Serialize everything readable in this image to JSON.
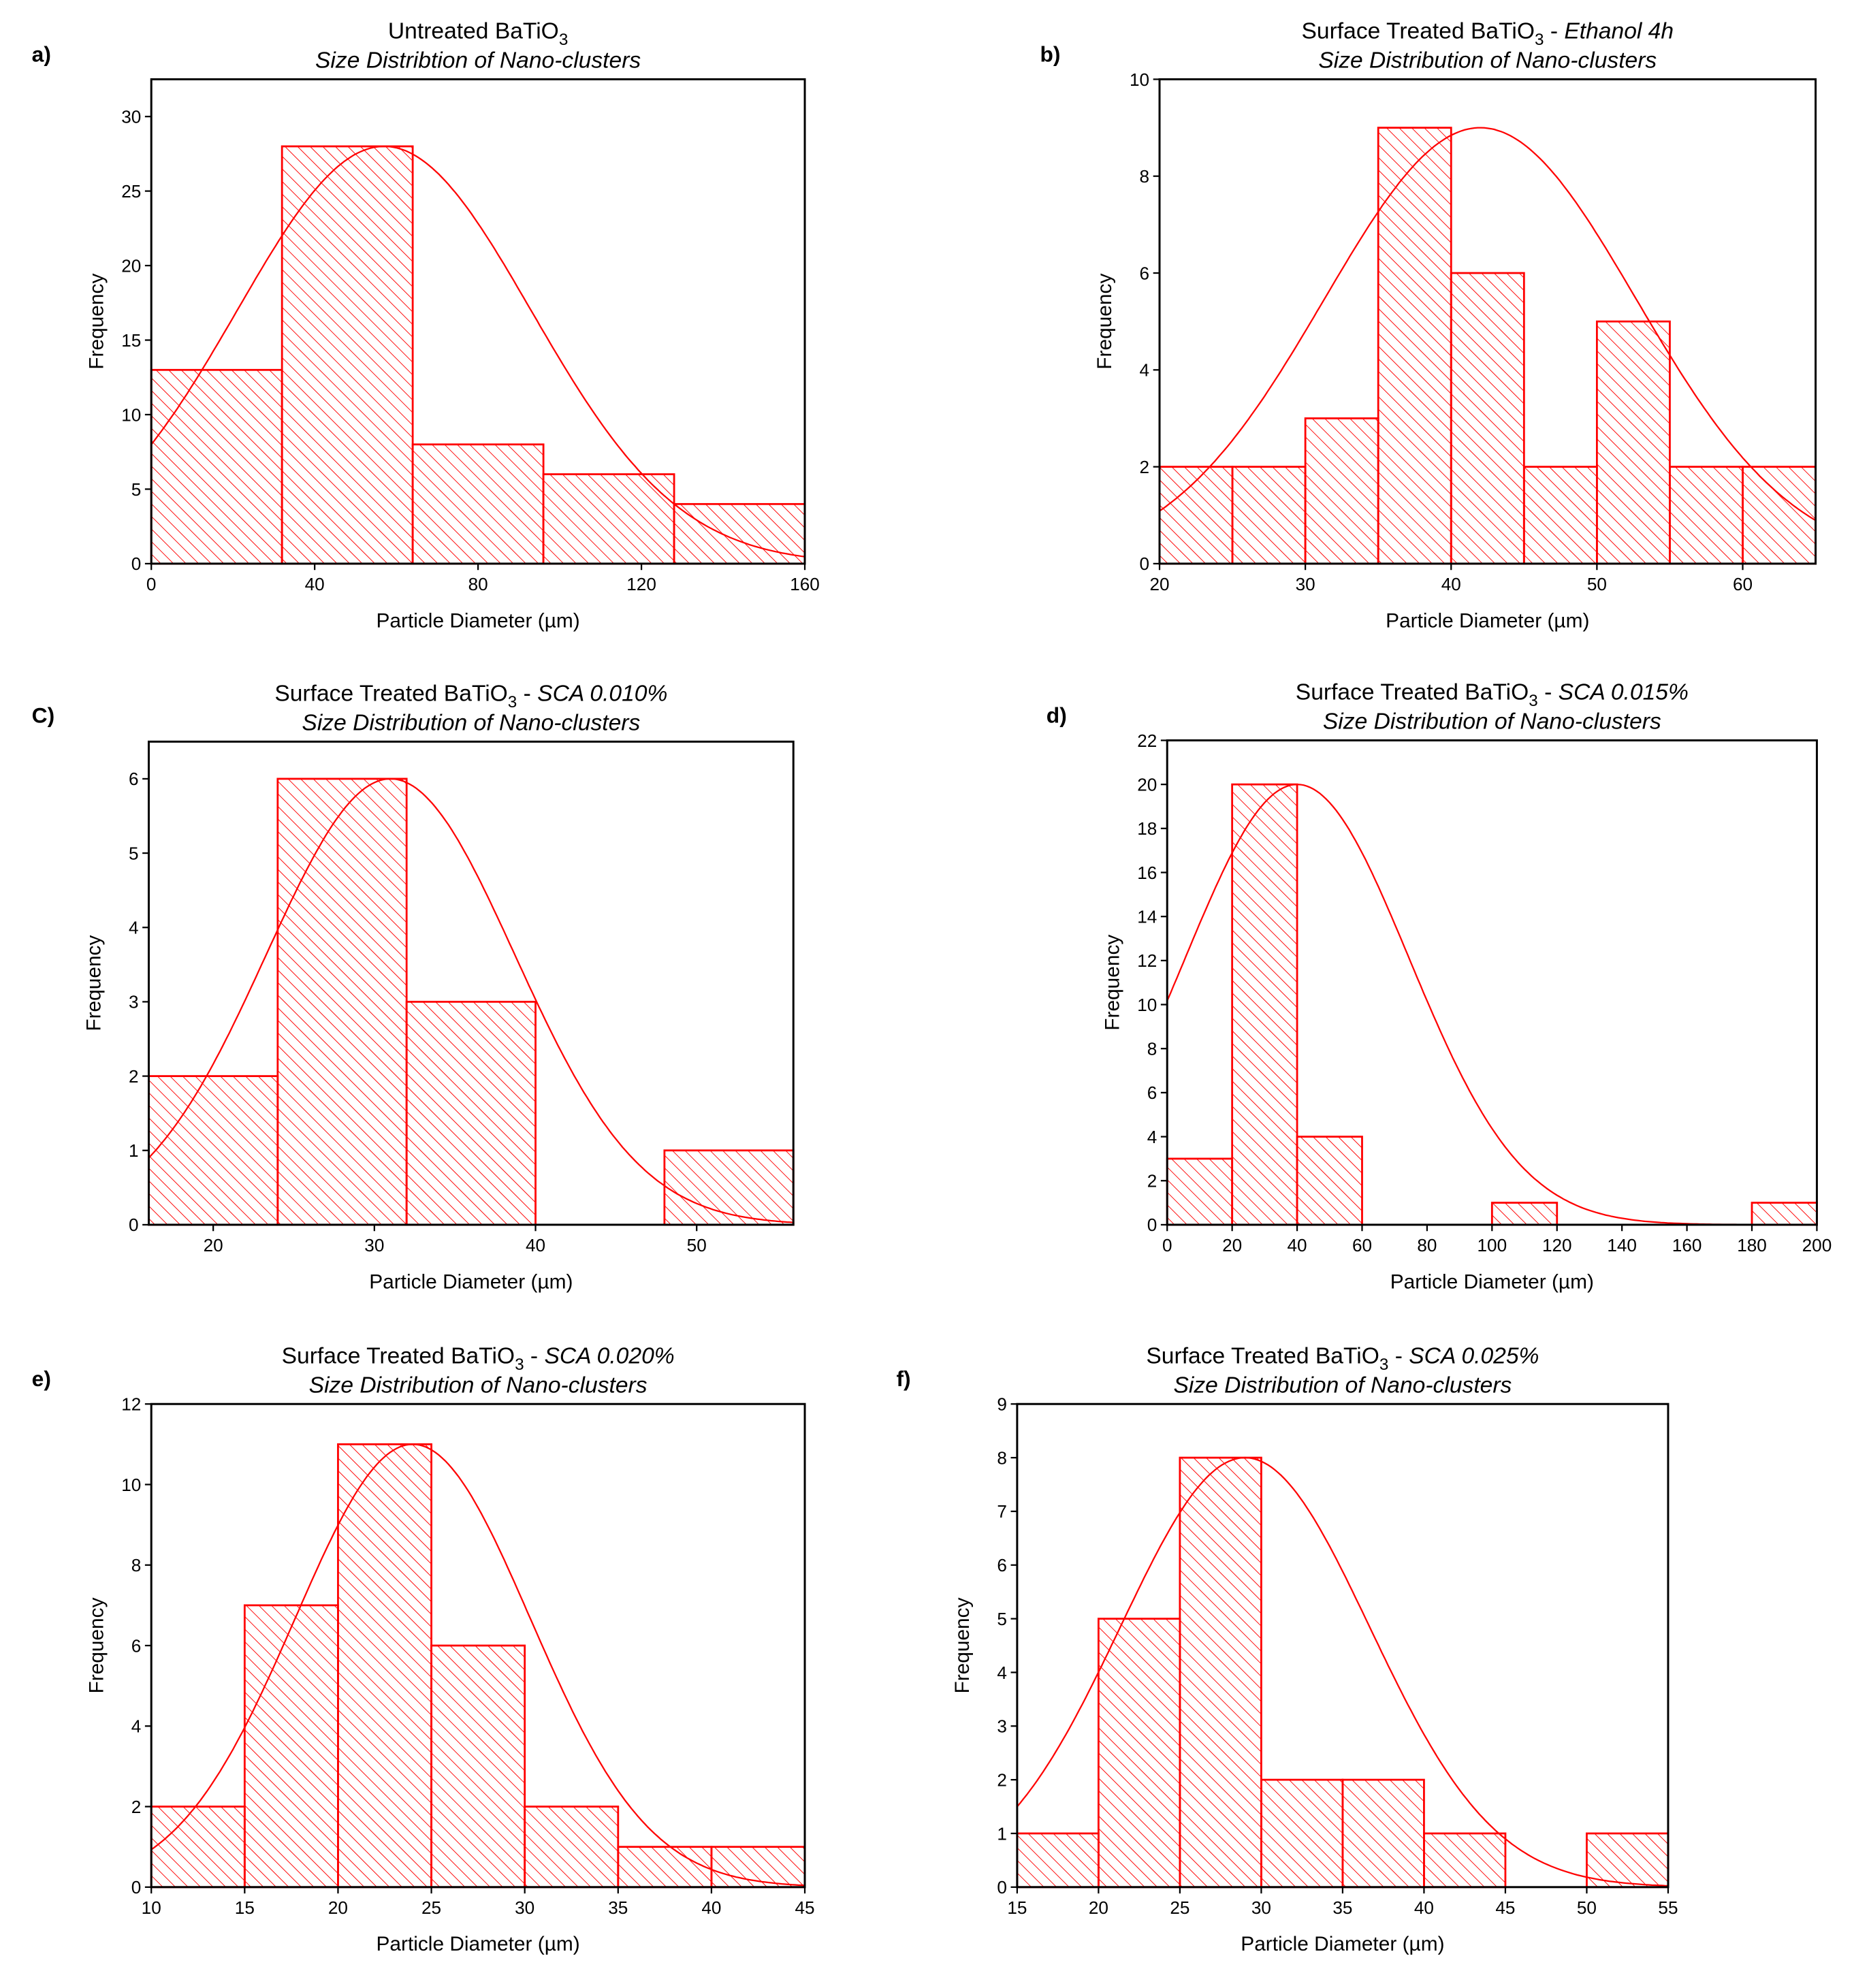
{
  "chart_data": [
    {
      "type": "bar",
      "panel_label": "a)",
      "title": "Untreated BaTiO",
      "title_sub": "3",
      "title_suffix": "",
      "subtitle": "Size Distribtion of Nano-clusters",
      "xlabel": "Particle Diameter (µm)",
      "ylabel": "Frequency",
      "xlim": [
        0,
        160
      ],
      "ylim": [
        0,
        32.5
      ],
      "xticks": [
        0,
        40,
        80,
        120,
        160
      ],
      "yticks": [
        0,
        5,
        10,
        15,
        20,
        25,
        30
      ],
      "bins": [
        [
          0,
          32
        ],
        [
          32,
          64
        ],
        [
          64,
          96
        ],
        [
          96,
          128
        ],
        [
          128,
          160
        ]
      ],
      "values": [
        13,
        28,
        8,
        6,
        4
      ],
      "fit": {
        "type": "gaussian",
        "peak": 28,
        "center": 57,
        "sigma": 36
      }
    },
    {
      "type": "bar",
      "panel_label": "b)",
      "title": "Surface Treated BaTiO",
      "title_sub": "3",
      "title_suffix": " - Ethanol 4h",
      "subtitle": "Size Distribution of Nano-clusters",
      "xlabel": "Particle Diameter (µm)",
      "ylabel": "Frequency",
      "xlim": [
        20,
        65
      ],
      "ylim": [
        0,
        10
      ],
      "xticks": [
        20,
        30,
        40,
        50,
        60
      ],
      "yticks": [
        0,
        2,
        4,
        6,
        8,
        10
      ],
      "bins": [
        [
          20,
          25
        ],
        [
          25,
          30
        ],
        [
          30,
          35
        ],
        [
          35,
          40
        ],
        [
          40,
          45
        ],
        [
          45,
          50
        ],
        [
          50,
          55
        ],
        [
          55,
          60
        ],
        [
          60,
          65
        ]
      ],
      "values": [
        2,
        2,
        3,
        9,
        6,
        2,
        5,
        2,
        2
      ],
      "fit": {
        "type": "gaussian",
        "peak": 9,
        "center": 42,
        "sigma": 10.7
      }
    },
    {
      "type": "bar",
      "panel_label": "C)",
      "title": "Surface Treated BaTiO",
      "title_sub": "3",
      "title_suffix": " - SCA 0.010%",
      "subtitle": "Size Distribution of Nano-clusters",
      "xlabel": "Particle Diameter (µm)",
      "ylabel": "Frequency",
      "xlim": [
        16,
        56
      ],
      "ylim": [
        0,
        6.5
      ],
      "xticks": [
        20,
        30,
        40,
        50
      ],
      "yticks": [
        0,
        1,
        2,
        3,
        4,
        5,
        6
      ],
      "bins": [
        [
          16,
          24
        ],
        [
          24,
          32
        ],
        [
          32,
          40
        ],
        [
          40,
          48
        ],
        [
          48,
          56
        ]
      ],
      "values": [
        2,
        6,
        3,
        0,
        1
      ],
      "fit": {
        "type": "gaussian",
        "peak": 6,
        "center": 31,
        "sigma": 7.7
      }
    },
    {
      "type": "bar",
      "panel_label": "d)",
      "title": "Surface Treated BaTiO",
      "title_sub": "3",
      "title_suffix": " - SCA 0.015%",
      "subtitle": "Size Distribution of Nano-clusters",
      "xlabel": "Particle Diameter (µm)",
      "ylabel": "Frequency",
      "xlim": [
        0,
        200
      ],
      "ylim": [
        0,
        22
      ],
      "xticks": [
        0,
        20,
        40,
        60,
        80,
        100,
        120,
        140,
        160,
        180,
        200
      ],
      "yticks": [
        0,
        2,
        4,
        6,
        8,
        10,
        12,
        14,
        16,
        18,
        20,
        22
      ],
      "bins": [
        [
          0,
          20
        ],
        [
          20,
          40
        ],
        [
          40,
          60
        ],
        [
          60,
          80
        ],
        [
          80,
          100
        ],
        [
          100,
          120
        ],
        [
          120,
          140
        ],
        [
          140,
          160
        ],
        [
          160,
          180
        ],
        [
          180,
          200
        ]
      ],
      "values": [
        3,
        20,
        4,
        0,
        0,
        1,
        0,
        0,
        0,
        1
      ],
      "fit": {
        "type": "gaussian",
        "peak": 20,
        "center": 40,
        "sigma": 34.4
      }
    },
    {
      "type": "bar",
      "panel_label": "e)",
      "title": "Surface Treated BaTiO",
      "title_sub": "3",
      "title_suffix": " - SCA 0.020%",
      "subtitle": "Size Distribution of Nano-clusters",
      "xlabel": "Particle Diameter (µm)",
      "ylabel": "Frequency",
      "xlim": [
        10,
        45
      ],
      "ylim": [
        0,
        12
      ],
      "xticks": [
        10,
        15,
        20,
        25,
        30,
        35,
        40,
        45
      ],
      "yticks": [
        0,
        2,
        4,
        6,
        8,
        10,
        12
      ],
      "bins": [
        [
          10,
          15
        ],
        [
          15,
          20
        ],
        [
          20,
          25
        ],
        [
          25,
          30
        ],
        [
          30,
          35
        ],
        [
          35,
          40
        ],
        [
          40,
          45
        ]
      ],
      "values": [
        2,
        7,
        11,
        6,
        2,
        1,
        1
      ],
      "fit": {
        "type": "gaussian",
        "peak": 11,
        "center": 24,
        "sigma": 6.3
      }
    },
    {
      "type": "bar",
      "panel_label": "f)",
      "title": "Surface Treated BaTiO",
      "title_sub": "3",
      "title_suffix": " - SCA 0.025%",
      "subtitle": "Size Distribution of Nano-clusters",
      "xlabel": "Particle Diameter (µm)",
      "ylabel": "Frequency",
      "xlim": [
        15,
        55
      ],
      "ylim": [
        0,
        9
      ],
      "xticks": [
        15,
        20,
        25,
        30,
        35,
        40,
        45,
        50,
        55
      ],
      "yticks": [
        0,
        1,
        2,
        3,
        4,
        5,
        6,
        7,
        8,
        9
      ],
      "bins": [
        [
          15,
          20
        ],
        [
          20,
          25
        ],
        [
          25,
          30
        ],
        [
          30,
          35
        ],
        [
          35,
          40
        ],
        [
          40,
          45
        ],
        [
          45,
          50
        ],
        [
          50,
          55
        ]
      ],
      "values": [
        1,
        5,
        8,
        2,
        2,
        1,
        0,
        1
      ],
      "fit": {
        "type": "gaussian",
        "peak": 8,
        "center": 29,
        "sigma": 7.65
      }
    }
  ],
  "colors": {
    "bar": "#ff0000",
    "axis": "#000000"
  }
}
